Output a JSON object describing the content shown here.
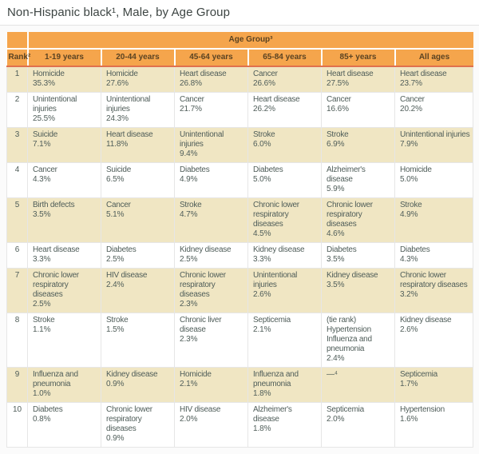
{
  "page": {
    "title": "Non-Hispanic black¹, Male, by Age Group"
  },
  "table": {
    "age_group_header": "Age Group³",
    "rank_header": "Rank²",
    "columns": [
      "1-19 years",
      "20-44 years",
      "45-64 years",
      "65-84 years",
      "85+ years",
      "All ages"
    ],
    "rows": [
      {
        "rank": "1",
        "cells": [
          {
            "cause": "Homicide",
            "pct": "35.3%"
          },
          {
            "cause": "Homicide",
            "pct": "27.6%"
          },
          {
            "cause": "Heart disease",
            "pct": "26.8%"
          },
          {
            "cause": "Cancer",
            "pct": "26.6%"
          },
          {
            "cause": "Heart disease",
            "pct": "27.5%"
          },
          {
            "cause": "Heart disease",
            "pct": "23.7%"
          }
        ]
      },
      {
        "rank": "2",
        "cells": [
          {
            "cause": "Unintentional injuries",
            "pct": "25.5%"
          },
          {
            "cause": "Unintentional injuries",
            "pct": "24.3%"
          },
          {
            "cause": "Cancer",
            "pct": "21.7%"
          },
          {
            "cause": "Heart disease",
            "pct": "26.2%"
          },
          {
            "cause": "Cancer",
            "pct": "16.6%"
          },
          {
            "cause": "Cancer",
            "pct": "20.2%"
          }
        ]
      },
      {
        "rank": "3",
        "cells": [
          {
            "cause": "Suicide",
            "pct": "7.1%"
          },
          {
            "cause": "Heart disease",
            "pct": "11.8%"
          },
          {
            "cause": "Unintentional injuries",
            "pct": "9.4%"
          },
          {
            "cause": "Stroke",
            "pct": "6.0%"
          },
          {
            "cause": "Stroke",
            "pct": "6.9%"
          },
          {
            "cause": "Unintentional injuries",
            "pct": "7.9%"
          }
        ]
      },
      {
        "rank": "4",
        "cells": [
          {
            "cause": "Cancer",
            "pct": "4.3%"
          },
          {
            "cause": "Suicide",
            "pct": "6.5%"
          },
          {
            "cause": "Diabetes",
            "pct": "4.9%"
          },
          {
            "cause": "Diabetes",
            "pct": "5.0%"
          },
          {
            "cause": "Alzheimer's disease",
            "pct": "5.9%"
          },
          {
            "cause": "Homicide",
            "pct": "5.0%"
          }
        ]
      },
      {
        "rank": "5",
        "cells": [
          {
            "cause": "Birth defects",
            "pct": "3.5%"
          },
          {
            "cause": "Cancer",
            "pct": "5.1%"
          },
          {
            "cause": "Stroke",
            "pct": "4.7%"
          },
          {
            "cause": "Chronic lower respiratory diseases",
            "pct": "4.5%"
          },
          {
            "cause": "Chronic lower respiratory diseases",
            "pct": "4.6%"
          },
          {
            "cause": "Stroke",
            "pct": "4.9%"
          }
        ]
      },
      {
        "rank": "6",
        "cells": [
          {
            "cause": "Heart disease",
            "pct": "3.3%"
          },
          {
            "cause": "Diabetes",
            "pct": "2.5%"
          },
          {
            "cause": "Kidney disease",
            "pct": "2.5%"
          },
          {
            "cause": "Kidney disease",
            "pct": "3.3%"
          },
          {
            "cause": "Diabetes",
            "pct": "3.5%"
          },
          {
            "cause": "Diabetes",
            "pct": "4.3%"
          }
        ]
      },
      {
        "rank": "7",
        "cells": [
          {
            "cause": "Chronic lower respiratory diseases",
            "pct": "2.5%"
          },
          {
            "cause": "HIV disease",
            "pct": "2.4%"
          },
          {
            "cause": "Chronic lower respiratory diseases",
            "pct": "2.3%"
          },
          {
            "cause": "Unintentional injuries",
            "pct": "2.6%"
          },
          {
            "cause": "Kidney disease",
            "pct": "3.5%"
          },
          {
            "cause": "Chronic lower respiratory diseases",
            "pct": "3.2%"
          }
        ]
      },
      {
        "rank": "8",
        "cells": [
          {
            "cause": "Stroke",
            "pct": "1.1%"
          },
          {
            "cause": "Stroke",
            "pct": "1.5%"
          },
          {
            "cause": "Chronic liver disease",
            "pct": "2.3%"
          },
          {
            "cause": "Septicemia",
            "pct": "2.1%"
          },
          {
            "cause": "(tie rank)\nHypertension\nInfluenza and pneumonia",
            "pct": "2.4%"
          },
          {
            "cause": "Kidney disease",
            "pct": "2.6%"
          }
        ]
      },
      {
        "rank": "9",
        "cells": [
          {
            "cause": "Influenza and pneumonia",
            "pct": "1.0%"
          },
          {
            "cause": "Kidney disease",
            "pct": "0.9%"
          },
          {
            "cause": "Homicide",
            "pct": "2.1%"
          },
          {
            "cause": "Influenza and pneumonia",
            "pct": "1.8%"
          },
          {
            "cause": "—⁴",
            "pct": ""
          },
          {
            "cause": "Septicemia",
            "pct": "1.7%"
          }
        ]
      },
      {
        "rank": "10",
        "cells": [
          {
            "cause": "Diabetes",
            "pct": "0.8%"
          },
          {
            "cause": "Chronic lower respiratory diseases",
            "pct": "0.9%"
          },
          {
            "cause": "HIV disease",
            "pct": "2.0%"
          },
          {
            "cause": "Alzheimer's disease",
            "pct": "1.8%"
          },
          {
            "cause": "Septicemia",
            "pct": "2.0%"
          },
          {
            "cause": "Hypertension",
            "pct": "1.6%"
          }
        ]
      }
    ]
  },
  "colors": {
    "header_orange": "#F5A54C",
    "header_text": "#5B4322",
    "header_bottom_rule": "#E0714E",
    "row_beige": "#F0E6C3",
    "row_white": "#FFFFFF",
    "body_text": "#4F5D59",
    "grid_line": "#E6E6E6",
    "title_text": "#3D4543"
  }
}
